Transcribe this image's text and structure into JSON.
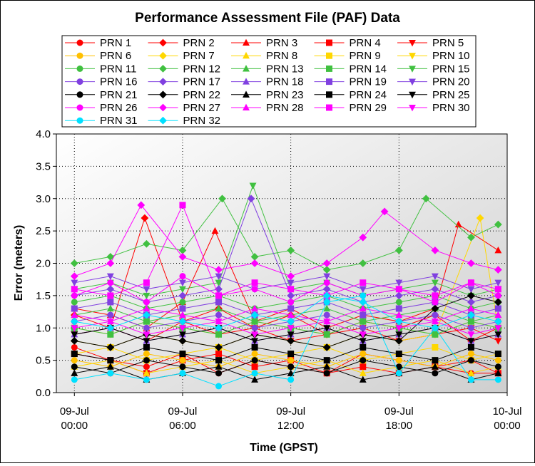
{
  "chart_data": {
    "type": "line",
    "title": "Performance Assessment File (PAF) Data",
    "xlabel": "Time (GPST)",
    "ylabel": "Error (meters)",
    "ylim": [
      0,
      4.0
    ],
    "yticks": [
      "0.0",
      "0.5",
      "1.0",
      "1.5",
      "2.0",
      "2.5",
      "3.0",
      "3.5",
      "4.0"
    ],
    "xlim_hours": [
      -1,
      24
    ],
    "xticks": [
      {
        "hour": 0,
        "l1": "09-Jul",
        "l2": "00:00"
      },
      {
        "hour": 6,
        "l1": "09-Jul",
        "l2": "06:00"
      },
      {
        "hour": 12,
        "l1": "09-Jul",
        "l2": "12:00"
      },
      {
        "hour": 18,
        "l1": "09-Jul",
        "l2": "18:00"
      },
      {
        "hour": 24,
        "l1": "10-Jul",
        "l2": "00:00"
      }
    ],
    "grid": true,
    "legend_position": "top",
    "series": [
      {
        "name": "PRN 1",
        "color": "#ff0000",
        "marker": "circle",
        "x": [
          0,
          2,
          4,
          6,
          8,
          10,
          12,
          14,
          16,
          18,
          20,
          22,
          23.5
        ],
        "y": [
          0.7,
          0.5,
          0.4,
          0.6,
          0.3,
          0.5,
          0.4,
          0.3,
          0.6,
          0.5,
          0.4,
          0.3,
          0.3
        ]
      },
      {
        "name": "PRN 2",
        "color": "#ff0000",
        "marker": "diamond",
        "x": [
          0,
          2,
          3.9,
          6,
          8,
          10,
          12,
          14,
          16,
          18,
          20,
          22,
          23.5
        ],
        "y": [
          1.2,
          1.0,
          2.7,
          1.1,
          1.3,
          1.0,
          1.2,
          0.9,
          1.1,
          1.0,
          1.2,
          0.8,
          1.0
        ]
      },
      {
        "name": "PRN 3",
        "color": "#ff0000",
        "marker": "triangle",
        "x": [
          0,
          2,
          4,
          6,
          7.8,
          10,
          12,
          14,
          16,
          18,
          20,
          21.3,
          23.5
        ],
        "y": [
          1.3,
          1.2,
          1.0,
          1.4,
          2.5,
          1.1,
          1.3,
          1.0,
          1.2,
          1.1,
          1.3,
          2.6,
          2.2
        ]
      },
      {
        "name": "PRN 4",
        "color": "#ff0000",
        "marker": "square",
        "x": [
          0,
          2,
          4,
          6,
          8,
          10,
          12,
          14,
          16,
          18,
          20,
          22,
          23.5
        ],
        "y": [
          0.6,
          0.5,
          0.3,
          0.5,
          0.6,
          0.4,
          0.5,
          0.3,
          0.4,
          0.3,
          0.4,
          0.5,
          0.3
        ]
      },
      {
        "name": "PRN 5",
        "color": "#ff0000",
        "marker": "triangle-down",
        "x": [
          0,
          2,
          4,
          6,
          8,
          10,
          12,
          14,
          16,
          18,
          20,
          22,
          23.5
        ],
        "y": [
          0.9,
          1.0,
          0.8,
          1.1,
          0.9,
          1.0,
          0.8,
          0.9,
          1.0,
          0.8,
          0.9,
          1.0,
          0.8
        ]
      },
      {
        "name": "PRN 6",
        "color": "#ffc000",
        "marker": "circle",
        "x": [
          0,
          2,
          4,
          6,
          8,
          10,
          12,
          14,
          16,
          18,
          20,
          22,
          23.5
        ],
        "y": [
          0.5,
          0.4,
          0.6,
          0.5,
          0.4,
          0.6,
          0.5,
          0.4,
          0.6,
          0.5,
          0.4,
          0.6,
          0.5
        ]
      },
      {
        "name": "PRN 7",
        "color": "#ffd700",
        "marker": "diamond",
        "x": [
          0,
          2,
          4,
          6,
          8,
          10,
          12,
          14,
          16,
          18,
          20,
          22.5,
          23.5
        ],
        "y": [
          0.8,
          0.7,
          0.9,
          0.8,
          0.7,
          0.9,
          0.8,
          0.7,
          0.9,
          0.8,
          0.9,
          2.7,
          1.0
        ]
      },
      {
        "name": "PRN 8",
        "color": "#ffd700",
        "marker": "triangle",
        "x": [
          0,
          2,
          4,
          6,
          8,
          10,
          12,
          14,
          16,
          18,
          20,
          22,
          23.5
        ],
        "y": [
          0.4,
          0.5,
          0.3,
          0.4,
          0.5,
          0.3,
          0.4,
          0.5,
          0.3,
          0.4,
          0.5,
          0.3,
          0.4
        ]
      },
      {
        "name": "PRN 9",
        "color": "#ffd700",
        "marker": "square",
        "x": [
          0,
          2,
          4,
          6,
          8,
          10,
          12,
          14,
          16,
          18,
          20,
          22,
          23.5
        ],
        "y": [
          0.6,
          0.7,
          0.5,
          0.6,
          0.7,
          0.5,
          0.6,
          0.7,
          0.5,
          0.6,
          0.7,
          0.5,
          0.6
        ]
      },
      {
        "name": "PRN 10",
        "color": "#ffd700",
        "marker": "triangle-down",
        "x": [
          0,
          2,
          4,
          6,
          8,
          10,
          12,
          14,
          16,
          18,
          20,
          22,
          23.5
        ],
        "y": [
          1.0,
          0.9,
          1.1,
          1.0,
          0.9,
          1.1,
          1.0,
          0.9,
          1.1,
          1.0,
          0.9,
          1.1,
          1.0
        ]
      },
      {
        "name": "PRN 11",
        "color": "#40c040",
        "marker": "circle",
        "x": [
          0,
          2,
          4,
          6,
          8,
          10,
          12,
          14,
          16,
          18,
          20,
          22,
          23.5
        ],
        "y": [
          1.4,
          1.5,
          1.3,
          1.4,
          1.5,
          1.3,
          1.4,
          1.5,
          1.3,
          1.4,
          1.5,
          1.3,
          1.4
        ]
      },
      {
        "name": "PRN 12",
        "color": "#40c040",
        "marker": "diamond",
        "x": [
          0,
          2,
          4,
          6,
          8.2,
          10,
          12,
          14,
          16,
          18,
          19.5,
          22,
          23.5
        ],
        "y": [
          2.0,
          2.1,
          2.3,
          2.2,
          3.0,
          2.1,
          2.2,
          1.9,
          2.0,
          2.2,
          3.0,
          2.4,
          2.6
        ]
      },
      {
        "name": "PRN 13",
        "color": "#40c040",
        "marker": "triangle",
        "x": [
          0,
          2,
          4,
          6,
          8,
          10,
          12,
          14,
          16,
          18,
          20,
          22,
          23.5
        ],
        "y": [
          1.2,
          1.3,
          1.1,
          1.2,
          1.3,
          1.1,
          1.2,
          1.3,
          1.1,
          1.2,
          1.3,
          1.1,
          1.2
        ]
      },
      {
        "name": "PRN 14",
        "color": "#40c040",
        "marker": "square",
        "x": [
          0,
          2,
          4,
          6,
          8,
          10,
          12,
          14,
          16,
          18,
          20,
          22,
          23.5
        ],
        "y": [
          1.0,
          0.9,
          1.1,
          1.0,
          0.9,
          1.1,
          1.0,
          0.9,
          1.1,
          1.0,
          0.9,
          1.1,
          1.0
        ]
      },
      {
        "name": "PRN 15",
        "color": "#40c040",
        "marker": "triangle-down",
        "x": [
          0,
          2,
          4,
          6,
          8,
          9.9,
          12,
          14,
          16,
          18,
          20,
          22,
          23.5
        ],
        "y": [
          1.6,
          1.7,
          1.5,
          1.6,
          1.7,
          3.2,
          1.6,
          1.7,
          1.5,
          1.6,
          1.7,
          1.5,
          1.6
        ]
      },
      {
        "name": "PRN 16",
        "color": "#8040e0",
        "marker": "circle",
        "x": [
          0,
          2,
          4,
          6,
          8,
          10,
          12,
          14,
          16,
          18,
          20,
          22,
          23.5
        ],
        "y": [
          1.1,
          1.2,
          1.0,
          1.1,
          1.2,
          1.0,
          1.1,
          1.2,
          1.0,
          1.1,
          1.2,
          1.0,
          1.1
        ]
      },
      {
        "name": "PRN 17",
        "color": "#8040e0",
        "marker": "diamond",
        "x": [
          0,
          2,
          4,
          6,
          8,
          9.8,
          12,
          14,
          16,
          18,
          20,
          22,
          23.5
        ],
        "y": [
          1.5,
          1.6,
          1.4,
          1.5,
          1.6,
          3.0,
          1.5,
          1.6,
          1.4,
          1.5,
          1.6,
          1.4,
          1.5
        ]
      },
      {
        "name": "PRN 18",
        "color": "#8040e0",
        "marker": "triangle",
        "x": [
          0,
          2,
          4,
          6,
          8,
          10,
          12,
          14,
          16,
          18,
          20,
          22,
          23.5
        ],
        "y": [
          0.9,
          1.0,
          0.8,
          0.9,
          1.0,
          0.8,
          0.9,
          1.0,
          0.8,
          0.9,
          1.0,
          0.8,
          0.9
        ]
      },
      {
        "name": "PRN 19",
        "color": "#8040e0",
        "marker": "square",
        "x": [
          0,
          2,
          4,
          6,
          8,
          10,
          12,
          14,
          16,
          18,
          20,
          22,
          23.5
        ],
        "y": [
          1.3,
          1.4,
          1.2,
          1.3,
          1.4,
          1.2,
          1.3,
          1.4,
          1.2,
          1.3,
          1.4,
          1.2,
          1.3
        ]
      },
      {
        "name": "PRN 20",
        "color": "#8040e0",
        "marker": "triangle-down",
        "x": [
          0,
          2,
          4,
          6,
          8,
          10,
          12,
          14,
          16,
          18,
          20,
          22,
          23.5
        ],
        "y": [
          1.7,
          1.8,
          1.6,
          1.7,
          1.8,
          1.6,
          1.7,
          1.8,
          1.6,
          1.7,
          1.8,
          1.6,
          1.7
        ]
      },
      {
        "name": "PRN 21",
        "color": "#000000",
        "marker": "circle",
        "x": [
          0,
          2,
          4,
          6,
          8,
          10,
          12,
          14,
          16,
          18,
          20,
          22,
          23.5
        ],
        "y": [
          0.4,
          0.3,
          0.5,
          0.4,
          0.3,
          0.5,
          0.4,
          0.3,
          0.5,
          0.4,
          0.3,
          0.5,
          0.4
        ]
      },
      {
        "name": "PRN 22",
        "color": "#000000",
        "marker": "diamond",
        "x": [
          0,
          2,
          4,
          6,
          8,
          10,
          12,
          14,
          16,
          18,
          20,
          22,
          23.5
        ],
        "y": [
          0.8,
          0.7,
          0.9,
          0.8,
          0.7,
          0.9,
          0.8,
          0.7,
          0.9,
          0.8,
          1.3,
          1.5,
          1.4
        ]
      },
      {
        "name": "PRN 23",
        "color": "#000000",
        "marker": "triangle",
        "x": [
          0,
          2,
          4,
          6,
          8,
          10,
          12,
          14,
          16,
          18,
          20,
          22,
          23.5
        ],
        "y": [
          0.3,
          0.4,
          0.2,
          0.3,
          0.4,
          0.2,
          0.3,
          0.4,
          0.2,
          0.3,
          0.4,
          0.2,
          0.3
        ]
      },
      {
        "name": "PRN 24",
        "color": "#000000",
        "marker": "square",
        "x": [
          0,
          2,
          4,
          6,
          8,
          10,
          12,
          14,
          16,
          18,
          20,
          22,
          23.5
        ],
        "y": [
          0.6,
          0.5,
          0.7,
          0.6,
          0.5,
          0.7,
          0.6,
          0.5,
          0.7,
          0.6,
          0.5,
          0.7,
          0.6
        ]
      },
      {
        "name": "PRN 25",
        "color": "#000000",
        "marker": "triangle-down",
        "x": [
          0,
          2,
          4,
          6,
          8,
          10,
          12,
          14,
          16,
          18,
          20,
          22,
          23.5
        ],
        "y": [
          0.9,
          1.0,
          0.8,
          0.9,
          1.0,
          0.8,
          0.9,
          1.0,
          0.8,
          0.9,
          1.0,
          0.8,
          0.9
        ]
      },
      {
        "name": "PRN 26",
        "color": "#ff00ff",
        "marker": "circle",
        "x": [
          0,
          2,
          4,
          6,
          8,
          10,
          12,
          14,
          16,
          18,
          20,
          22,
          23.5
        ],
        "y": [
          1.5,
          1.7,
          1.4,
          1.8,
          1.5,
          1.6,
          1.4,
          1.7,
          1.5,
          1.6,
          1.4,
          1.7,
          1.5
        ]
      },
      {
        "name": "PRN 27",
        "color": "#ff00ff",
        "marker": "diamond",
        "x": [
          0,
          2,
          3.7,
          6,
          8,
          10,
          12,
          14,
          16,
          17.2,
          20,
          22,
          23.5
        ],
        "y": [
          1.8,
          2.0,
          2.9,
          2.1,
          1.9,
          2.0,
          1.8,
          2.0,
          2.4,
          2.8,
          2.2,
          2.0,
          1.9
        ]
      },
      {
        "name": "PRN 28",
        "color": "#ff00ff",
        "marker": "triangle",
        "x": [
          0,
          2,
          4,
          6,
          8,
          10,
          12,
          14,
          16,
          18,
          20,
          22,
          23.5
        ],
        "y": [
          1.2,
          1.1,
          1.3,
          1.2,
          1.1,
          1.3,
          1.2,
          1.1,
          1.3,
          1.2,
          1.1,
          1.3,
          1.2
        ]
      },
      {
        "name": "PRN 29",
        "color": "#ff00ff",
        "marker": "square",
        "x": [
          0,
          2,
          4,
          6,
          8,
          10,
          12,
          14,
          16,
          18,
          20,
          22,
          23.5
        ],
        "y": [
          1.6,
          1.5,
          1.7,
          2.9,
          1.5,
          1.7,
          1.6,
          1.5,
          1.7,
          1.6,
          1.5,
          1.7,
          1.6
        ]
      },
      {
        "name": "PRN 30",
        "color": "#ff00ff",
        "marker": "triangle-down",
        "x": [
          0,
          2,
          4,
          6,
          8,
          10,
          12,
          14,
          16,
          18,
          20,
          22,
          23.5
        ],
        "y": [
          1.0,
          1.1,
          0.9,
          1.0,
          1.1,
          0.9,
          1.0,
          1.1,
          0.9,
          1.0,
          1.1,
          0.9,
          1.0
        ]
      },
      {
        "name": "PRN 31",
        "color": "#00e0ff",
        "marker": "circle",
        "x": [
          0,
          2,
          4,
          6,
          8,
          10,
          12,
          14,
          16,
          18,
          20,
          22,
          23.5
        ],
        "y": [
          0.2,
          0.3,
          0.2,
          0.3,
          0.1,
          0.3,
          0.2,
          1.4,
          1.5,
          0.3,
          1.0,
          0.2,
          0.2
        ]
      },
      {
        "name": "PRN 32",
        "color": "#00e0ff",
        "marker": "diamond",
        "x": [
          0,
          2,
          4,
          6,
          8,
          10,
          12,
          14,
          16,
          18,
          20,
          22,
          23.5
        ],
        "y": [
          1.1,
          1.0,
          1.2,
          1.1,
          1.0,
          1.2,
          1.1,
          1.5,
          1.4,
          1.1,
          1.0,
          1.2,
          1.1
        ]
      }
    ]
  }
}
